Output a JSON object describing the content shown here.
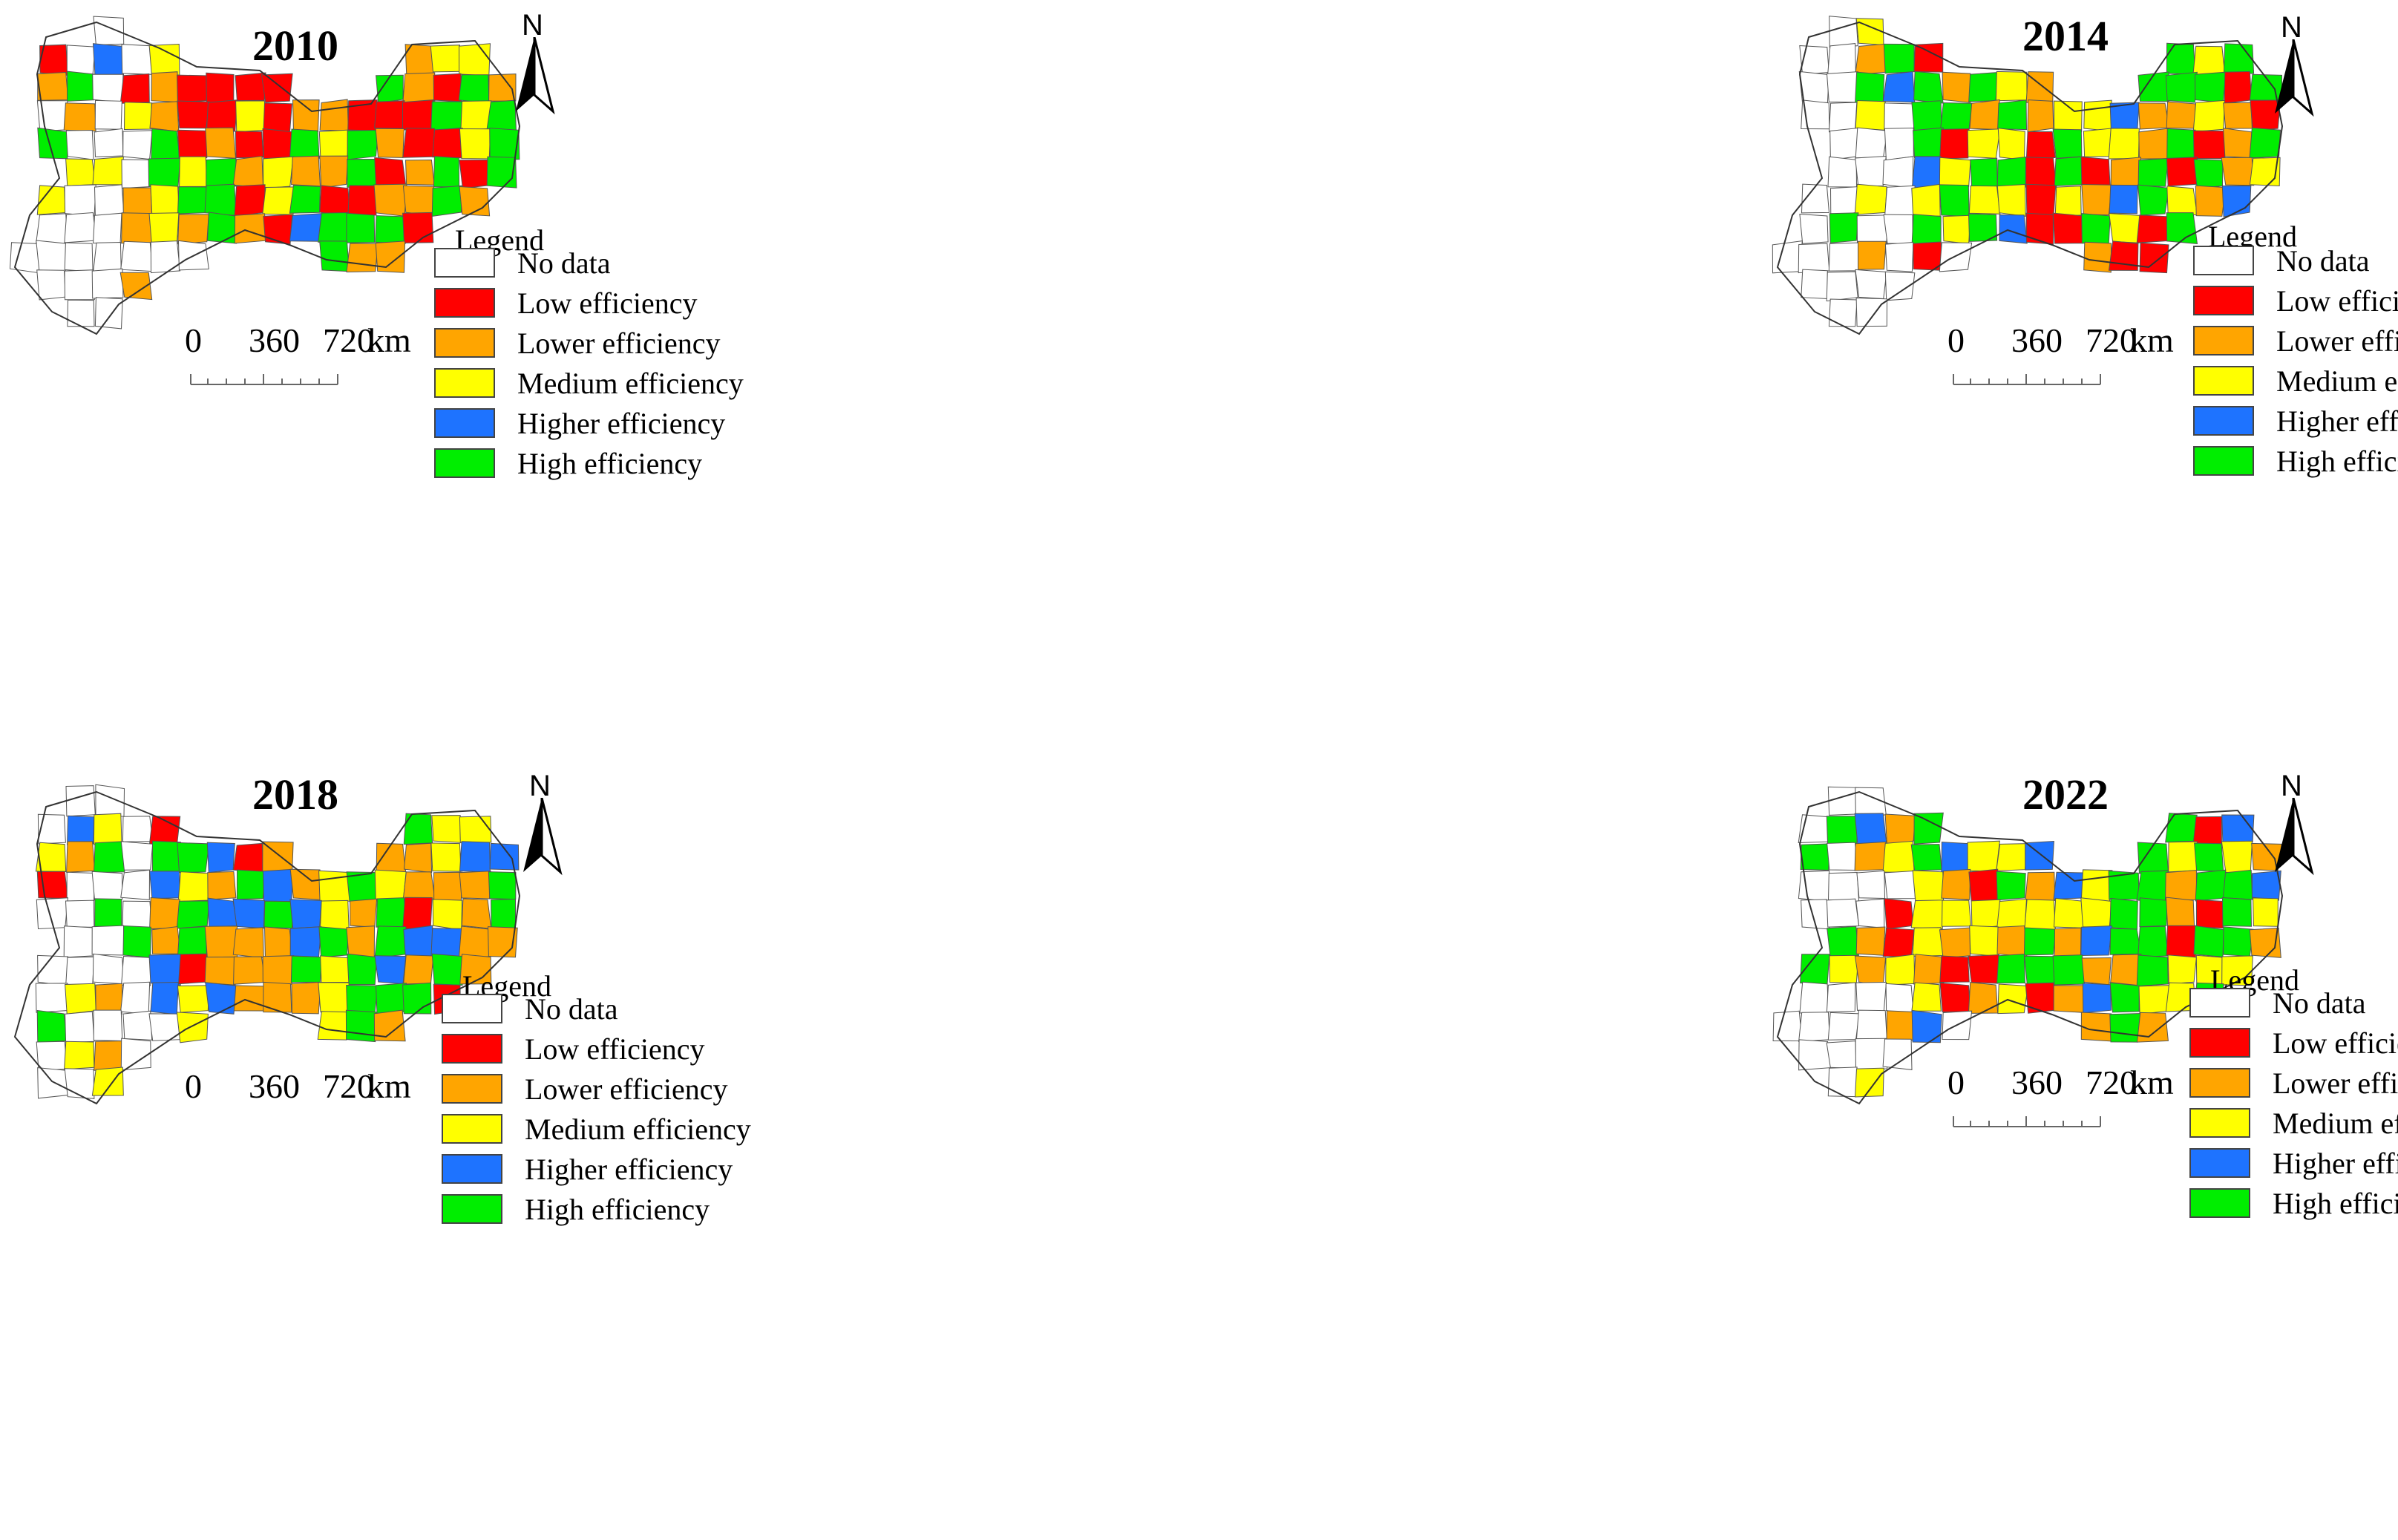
{
  "colors": {
    "no_data": "#ffffff",
    "low": "#ff0000",
    "lower": "#ffa500",
    "medium": "#ffff00",
    "higher": "#1e73ff",
    "high": "#00ee00",
    "outline": "#555555"
  },
  "legend": {
    "title": "Legend",
    "items": [
      {
        "key": "no_data",
        "label": "No data"
      },
      {
        "key": "low",
        "label": "Low efficiency"
      },
      {
        "key": "lower",
        "label": "Lower efficiency"
      },
      {
        "key": "medium",
        "label": "Medium efficiency"
      },
      {
        "key": "higher",
        "label": "Higher efficiency"
      },
      {
        "key": "high",
        "label": "High efficiency"
      }
    ]
  },
  "north_arrow": {
    "label": "N",
    "icon": "north-arrow-icon"
  },
  "scale_bar": {
    "ticks": [
      "0",
      "360",
      "720"
    ],
    "unit": "km"
  },
  "panels": [
    {
      "year": "2010"
    },
    {
      "year": "2014"
    },
    {
      "year": "2018"
    },
    {
      "year": "2022"
    }
  ]
}
